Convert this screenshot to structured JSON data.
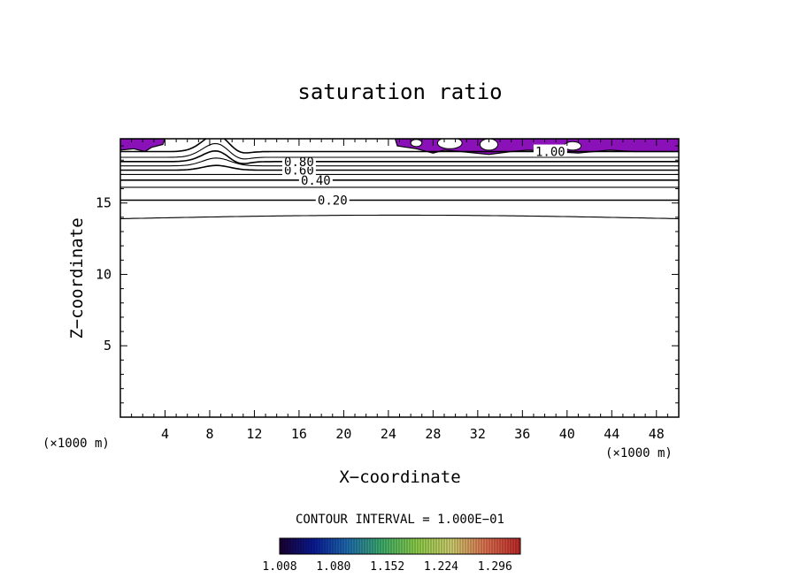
{
  "chart_data": {
    "type": "contour",
    "title": "saturation ratio",
    "xlabel": "X−coordinate",
    "ylabel": "Z−coordinate",
    "x_unit_left": "(×1000 m)",
    "x_unit_right": "(×1000 m)",
    "xlim": [
      0,
      50
    ],
    "ylim": [
      0,
      19.5
    ],
    "x_ticks": [
      4,
      8,
      12,
      16,
      20,
      24,
      28,
      32,
      36,
      40,
      44,
      48
    ],
    "y_ticks": [
      5,
      10,
      15
    ],
    "contours": [
      {
        "level": 0.1,
        "z": 13.9,
        "labeled": false
      },
      {
        "level": 0.2,
        "z": 15.2,
        "labeled": true,
        "label": "0.20",
        "label_x": 19
      },
      {
        "level": 0.3,
        "z": 16.1,
        "labeled": false
      },
      {
        "level": 0.4,
        "z": 16.6,
        "labeled": true,
        "label": "0.40",
        "label_x": 17.5
      },
      {
        "level": 0.5,
        "z": 17.0,
        "labeled": false
      },
      {
        "level": 0.6,
        "z": 17.3,
        "labeled": true,
        "label": "0.60",
        "label_x": 16.0
      },
      {
        "level": 0.7,
        "z": 17.6,
        "labeled": false
      },
      {
        "level": 0.8,
        "z": 17.9,
        "labeled": true,
        "label": "0.80",
        "label_x": 16.0
      },
      {
        "level": 0.9,
        "z": 18.2,
        "labeled": false
      },
      {
        "level": 1.0,
        "z": 18.6,
        "labeled": true,
        "label": "1.00",
        "label_x": 38.5
      }
    ],
    "shaded_regions_note": "supersaturated (>1.0) regions near model top",
    "contour_interval_text": "CONTOUR INTERVAL = 1.000E−01",
    "colorbar": {
      "tick_labels": [
        "1.008",
        "1.080",
        "1.152",
        "1.224",
        "1.296"
      ],
      "min": 1.008,
      "max": 1.33,
      "colors": [
        "#1a0030",
        "#0a1a9a",
        "#1f6fb0",
        "#3fb06a",
        "#8fd04a",
        "#d0d070",
        "#e07050",
        "#c02828"
      ]
    },
    "fill_color": "#8a10b8"
  }
}
